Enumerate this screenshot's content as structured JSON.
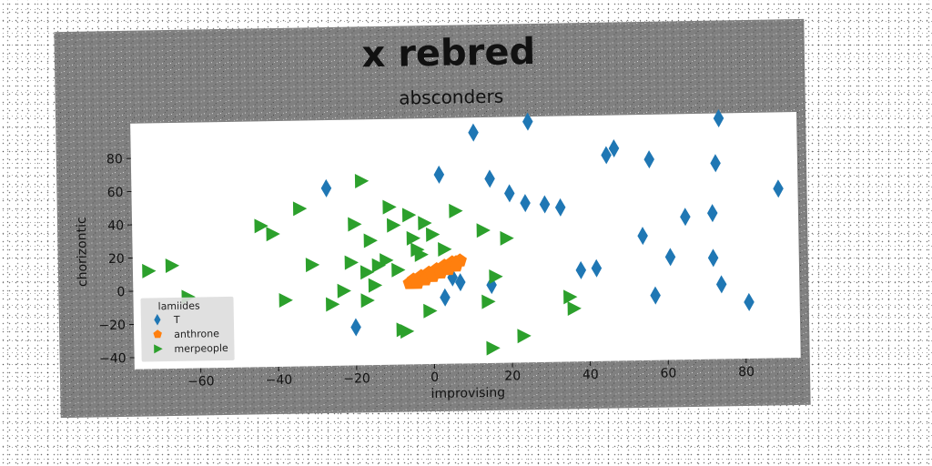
{
  "figure": {
    "suptitle": "x rebred",
    "background_color": "#808080",
    "plot_background": "#ffffff"
  },
  "chart_data": {
    "type": "scatter",
    "title": "absconders",
    "xlabel": "improvising",
    "ylabel": "chorizontic",
    "xlim": [
      -77,
      94
    ],
    "ylim": [
      -47,
      101
    ],
    "xticks": [
      -60,
      -40,
      -20,
      0,
      20,
      40,
      60,
      80
    ],
    "yticks": [
      -40,
      -20,
      0,
      20,
      40,
      60,
      80
    ],
    "grid": false,
    "legend": {
      "title": "lamiides",
      "placement": "lower-left"
    },
    "series": [
      {
        "name": "T",
        "marker": "diamond",
        "color": "#1f77b4",
        "points": [
          [
            -27,
            60
          ],
          [
            2,
            67
          ],
          [
            11,
            92
          ],
          [
            15,
            64
          ],
          [
            20,
            55
          ],
          [
            24,
            49
          ],
          [
            25,
            98
          ],
          [
            29,
            48
          ],
          [
            33,
            46
          ],
          [
            45,
            77
          ],
          [
            47,
            81
          ],
          [
            54,
            28
          ],
          [
            56,
            74
          ],
          [
            57,
            -8
          ],
          [
            61,
            15
          ],
          [
            65,
            39
          ],
          [
            72,
            14
          ],
          [
            72,
            41
          ],
          [
            73,
            71
          ],
          [
            74,
            -2
          ],
          [
            74,
            98
          ],
          [
            81,
            -13
          ],
          [
            89,
            55
          ],
          [
            5,
            5
          ],
          [
            3,
            -7
          ],
          [
            7,
            2
          ],
          [
            15,
            0
          ],
          [
            38,
            8
          ],
          [
            42,
            9
          ],
          [
            -20,
            -24
          ]
        ]
      },
      {
        "name": "anthrone",
        "marker": "pentagon",
        "color": "#ff7f0e",
        "points": [
          [
            -6,
            2
          ],
          [
            -5,
            3
          ],
          [
            -4,
            4
          ],
          [
            -3,
            5
          ],
          [
            -2,
            6
          ],
          [
            -1,
            7
          ],
          [
            0,
            8
          ],
          [
            1,
            9
          ],
          [
            2,
            10
          ],
          [
            3,
            11
          ],
          [
            4,
            12
          ],
          [
            5,
            13
          ],
          [
            6,
            14
          ],
          [
            7,
            15
          ],
          [
            -5,
            4
          ],
          [
            -3,
            6
          ],
          [
            -1,
            8
          ],
          [
            1,
            10
          ],
          [
            3,
            12
          ],
          [
            5,
            14
          ],
          [
            -4,
            2
          ],
          [
            -2,
            4
          ],
          [
            0,
            6
          ],
          [
            2,
            8
          ],
          [
            4,
            10
          ],
          [
            6,
            12
          ]
        ]
      },
      {
        "name": "merpeople",
        "marker": "triangle-right",
        "color": "#2ca02c",
        "points": [
          [
            -73,
            12
          ],
          [
            -67,
            15
          ],
          [
            -63,
            -4
          ],
          [
            -44,
            38
          ],
          [
            -41,
            33
          ],
          [
            -38,
            -7
          ],
          [
            -34,
            48
          ],
          [
            -31,
            14
          ],
          [
            -26,
            -10
          ],
          [
            -23,
            -2
          ],
          [
            -21,
            15
          ],
          [
            -20,
            38
          ],
          [
            -18,
            64
          ],
          [
            -17,
            9
          ],
          [
            -16,
            28
          ],
          [
            -15,
            1
          ],
          [
            -14,
            13
          ],
          [
            -12,
            16
          ],
          [
            -11,
            48
          ],
          [
            -10,
            37
          ],
          [
            -9,
            10
          ],
          [
            -8,
            -26
          ],
          [
            -7,
            -27
          ],
          [
            -6,
            43
          ],
          [
            -5,
            29
          ],
          [
            -4,
            22
          ],
          [
            -3,
            19
          ],
          [
            -2,
            38
          ],
          [
            -1,
            -15
          ],
          [
            0,
            31
          ],
          [
            3,
            22
          ],
          [
            6,
            45
          ],
          [
            13,
            33
          ],
          [
            14,
            -10
          ],
          [
            15,
            -38
          ],
          [
            16,
            5
          ],
          [
            19,
            28
          ],
          [
            23,
            -31
          ],
          [
            35,
            -8
          ],
          [
            36,
            -15
          ],
          [
            -17,
            -8
          ]
        ]
      }
    ]
  }
}
